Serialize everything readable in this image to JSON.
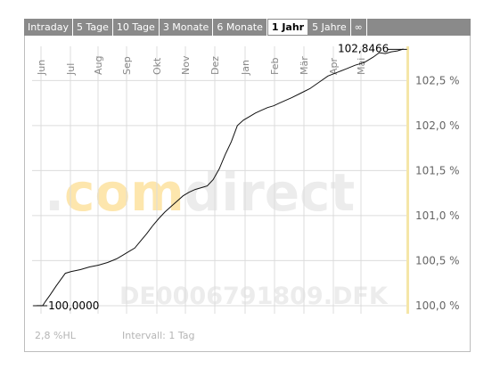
{
  "tabs": [
    {
      "label": "Intraday",
      "active": false
    },
    {
      "label": "5 Tage",
      "active": false
    },
    {
      "label": "10 Tage",
      "active": false
    },
    {
      "label": "3 Monate",
      "active": false
    },
    {
      "label": "6 Monate",
      "active": false
    },
    {
      "label": "1 Jahr",
      "active": true
    },
    {
      "label": "5 Jahre",
      "active": false
    },
    {
      "label": "∞",
      "active": false
    }
  ],
  "footer": {
    "hl_value": "2,8 %",
    "hl_suffix": "HL",
    "interval": "Intervall: 1 Tag"
  },
  "watermark": {
    "logo_prefix": ".",
    "logo_accent": "com",
    "logo_rest": "direct",
    "isin": "DE0006791809.DFK"
  },
  "colors": {
    "line": "#111111",
    "grid": "#dcdcdc",
    "axis_highlight": "#f5e6a8",
    "watermark_orange": "#fde6ad",
    "watermark_grey": "#ececec"
  },
  "chart_data": {
    "type": "line",
    "x_labels": [
      "Jun",
      "Jul",
      "Aug",
      "Sep",
      "Okt",
      "Nov",
      "Dez",
      "Jan",
      "Feb",
      "Mär",
      "Apr",
      "Mai"
    ],
    "y_tick_labels": [
      "100,0 %",
      "100,5 %",
      "101,0 %",
      "101,5 %",
      "102,0 %",
      "102,5 %"
    ],
    "y_ticks": [
      100.0,
      100.5,
      101.0,
      101.5,
      102.0,
      102.5
    ],
    "ylim": [
      99.95,
      102.88
    ],
    "x_domain": [
      -0.3,
      12.1
    ],
    "start_label": "100,0000",
    "end_label": "102,8466",
    "start_value": 100.0,
    "end_value": 102.8466,
    "series": [
      {
        "x": [
          -0.15,
          0.05,
          0.15,
          0.3,
          0.5,
          0.8,
          1.0,
          1.3,
          1.6,
          1.9,
          2.2,
          2.5,
          2.7,
          2.9,
          3.1,
          3.3,
          3.5,
          3.7,
          3.9,
          4.1,
          4.3,
          4.5,
          4.7,
          4.9,
          5.1,
          5.3,
          5.5,
          5.7,
          5.9,
          6.1,
          6.3,
          6.5,
          6.7,
          6.9,
          7.1,
          7.3,
          7.5,
          7.7,
          7.9,
          8.1,
          8.3,
          8.6,
          8.9,
          9.2,
          9.5,
          9.8,
          10.1,
          10.4,
          10.7,
          11.0,
          11.2,
          11.4,
          11.6,
          11.8,
          12.0
        ],
        "y": [
          100.0,
          100.0,
          100.05,
          100.12,
          100.22,
          100.36,
          100.38,
          100.4,
          100.43,
          100.45,
          100.48,
          100.52,
          100.56,
          100.6,
          100.64,
          100.72,
          100.8,
          100.89,
          100.97,
          101.04,
          101.1,
          101.16,
          101.22,
          101.26,
          101.29,
          101.31,
          101.33,
          101.4,
          101.52,
          101.68,
          101.82,
          102.0,
          102.06,
          102.1,
          102.14,
          102.17,
          102.2,
          102.22,
          102.25,
          102.28,
          102.31,
          102.36,
          102.41,
          102.48,
          102.55,
          102.59,
          102.63,
          102.67,
          102.7,
          102.76,
          102.81,
          102.8,
          102.82,
          102.83,
          102.85
        ]
      }
    ],
    "grid": true,
    "x_label_orientation": "vertical"
  }
}
